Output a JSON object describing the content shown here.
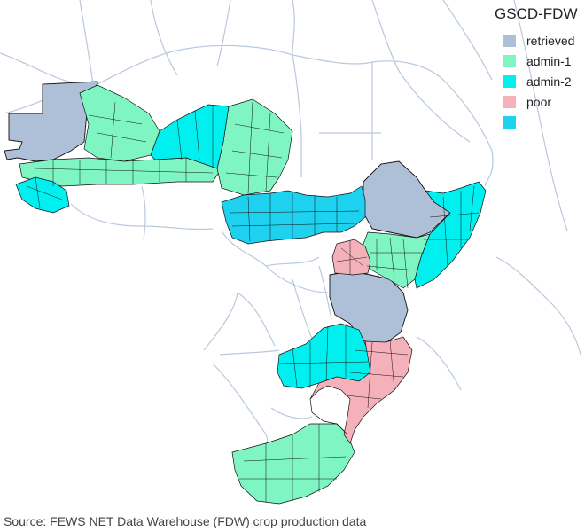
{
  "legend": {
    "title": "GSCD-FDW",
    "items": [
      {
        "key": "retrieved",
        "label": "retrieved",
        "color": "#aebfd8"
      },
      {
        "key": "admin1",
        "label": "admin-1",
        "color": "#7ff5c4"
      },
      {
        "key": "admin2",
        "label": "admin-2",
        "color": "#00f0f0"
      },
      {
        "key": "poor",
        "label": "poor",
        "color": "#f5b1ba"
      },
      {
        "key": "admin2b",
        "label": "",
        "color": "#1ed1ee"
      }
    ]
  },
  "source_note": "Source: FEWS NET Data Warehouse (FDW) crop production data",
  "map_colors": {
    "background_border": "#b8c8de",
    "region_border": "#111111"
  }
}
